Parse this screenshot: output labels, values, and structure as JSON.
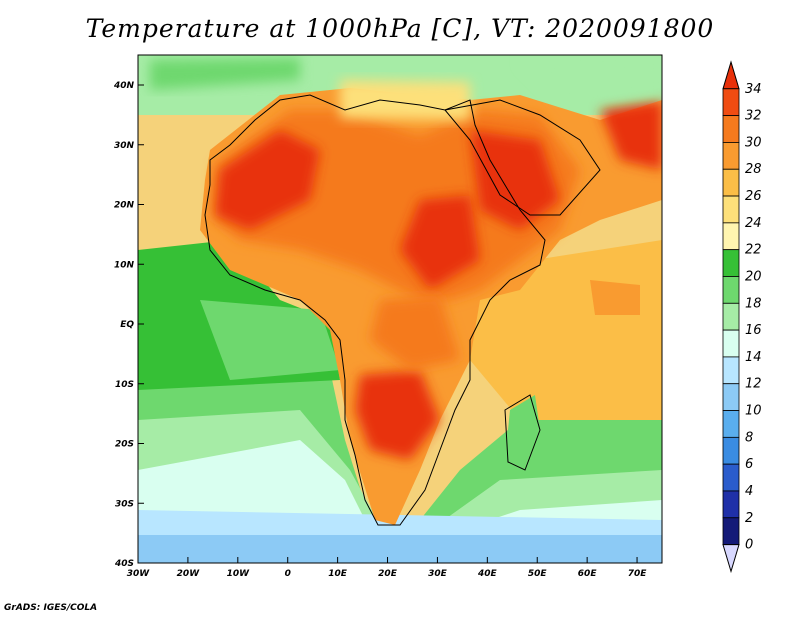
{
  "title": "Temperature at 1000hPa [C], VT: 2020091800",
  "credit": "GrADS: IGES/COLA",
  "map": {
    "projection": "latlon",
    "lon_ticks": [
      "30W",
      "20W",
      "10W",
      "0",
      "10E",
      "20E",
      "30E",
      "40E",
      "50E",
      "60E",
      "70E"
    ],
    "lat_ticks": [
      "40N",
      "30N",
      "20N",
      "10N",
      "EQ",
      "10S",
      "20S",
      "30S",
      "40S"
    ],
    "extent": {
      "lon": [
        -30,
        75
      ],
      "lat": [
        -40,
        45
      ]
    }
  },
  "colorbar": {
    "levels": [
      "34",
      "32",
      "30",
      "28",
      "26",
      "24",
      "22",
      "20",
      "18",
      "16",
      "14",
      "12",
      "10",
      "8",
      "6",
      "4",
      "2",
      "0"
    ],
    "colors": [
      "#e8300a",
      "#f04c12",
      "#f57a1e",
      "#f99b30",
      "#fbbe47",
      "#fde07a",
      "#fff5b0",
      "#36c036",
      "#6ed86e",
      "#a6eca6",
      "#d9fff0",
      "#b8e6ff",
      "#8ccaf5",
      "#5aaeee",
      "#3a8ce2",
      "#2a5ccc",
      "#1f30a8",
      "#141a78",
      "#d8d8ff"
    ]
  }
}
